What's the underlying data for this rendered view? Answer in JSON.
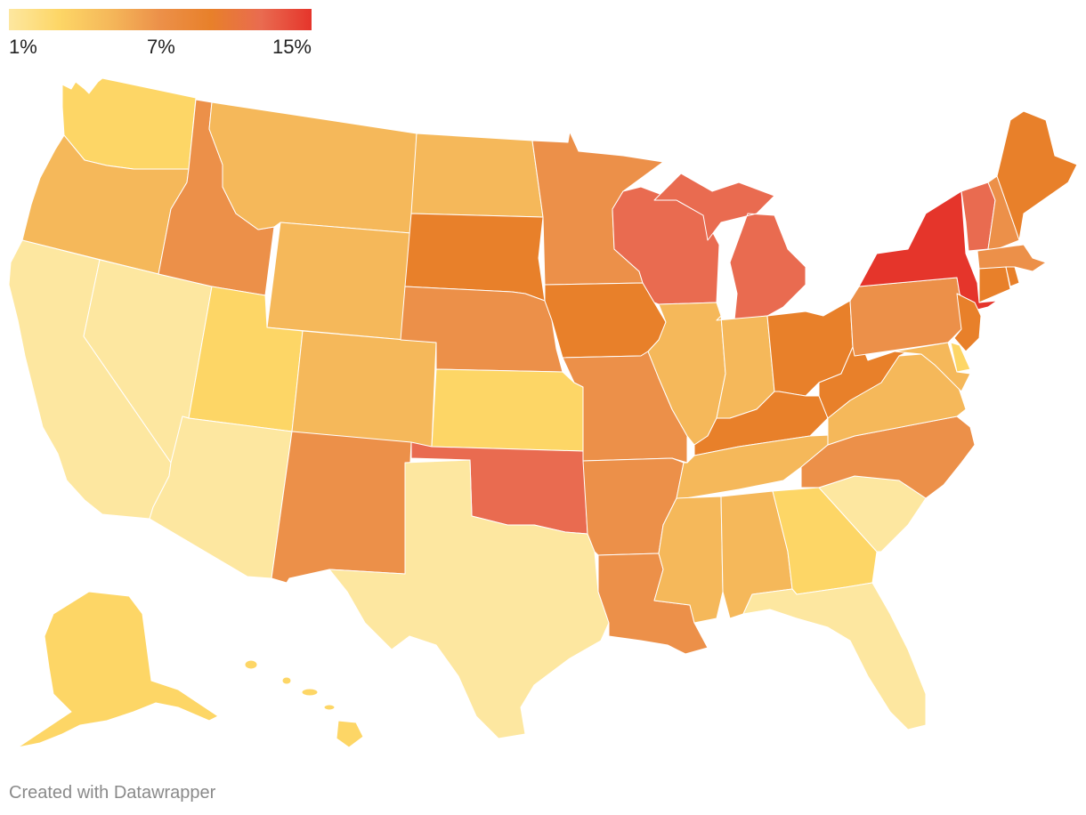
{
  "legend": {
    "colors": [
      "#fde7a0",
      "#fdd666",
      "#f5b85a",
      "#ec9049",
      "#e8802a",
      "#e96b50",
      "#e5352b"
    ],
    "labels": {
      "min": "1%",
      "mid": "7%",
      "max": "15%"
    }
  },
  "credit": "Created with Datawrapper",
  "colors": {
    "c1": "#fde7a0",
    "c2": "#fdd666",
    "c3": "#f5b85a",
    "c4": "#ec9049",
    "c5": "#e8802a",
    "c6": "#e96b50",
    "c7": "#e5352b"
  },
  "states": [
    {
      "name": "Washington",
      "color": "c2"
    },
    {
      "name": "Oregon",
      "color": "c3"
    },
    {
      "name": "California",
      "color": "c1"
    },
    {
      "name": "Nevada",
      "color": "c1"
    },
    {
      "name": "Idaho",
      "color": "c4"
    },
    {
      "name": "Montana",
      "color": "c3"
    },
    {
      "name": "Wyoming",
      "color": "c3"
    },
    {
      "name": "Utah",
      "color": "c2"
    },
    {
      "name": "Arizona",
      "color": "c1"
    },
    {
      "name": "Colorado",
      "color": "c3"
    },
    {
      "name": "New Mexico",
      "color": "c4"
    },
    {
      "name": "North Dakota",
      "color": "c3"
    },
    {
      "name": "South Dakota",
      "color": "c5"
    },
    {
      "name": "Nebraska",
      "color": "c4"
    },
    {
      "name": "Kansas",
      "color": "c2"
    },
    {
      "name": "Oklahoma",
      "color": "c6"
    },
    {
      "name": "Texas",
      "color": "c1"
    },
    {
      "name": "Minnesota",
      "color": "c4"
    },
    {
      "name": "Iowa",
      "color": "c5"
    },
    {
      "name": "Missouri",
      "color": "c4"
    },
    {
      "name": "Arkansas",
      "color": "c4"
    },
    {
      "name": "Louisiana",
      "color": "c4"
    },
    {
      "name": "Wisconsin",
      "color": "c6"
    },
    {
      "name": "Michigan",
      "color": "c6"
    },
    {
      "name": "Illinois",
      "color": "c3"
    },
    {
      "name": "Indiana",
      "color": "c3"
    },
    {
      "name": "Ohio",
      "color": "c5"
    },
    {
      "name": "Kentucky",
      "color": "c5"
    },
    {
      "name": "Tennessee",
      "color": "c3"
    },
    {
      "name": "Mississippi",
      "color": "c3"
    },
    {
      "name": "Alabama",
      "color": "c3"
    },
    {
      "name": "Georgia",
      "color": "c2"
    },
    {
      "name": "Florida",
      "color": "c1"
    },
    {
      "name": "South Carolina",
      "color": "c1"
    },
    {
      "name": "North Carolina",
      "color": "c4"
    },
    {
      "name": "Virginia",
      "color": "c3"
    },
    {
      "name": "West Virginia",
      "color": "c5"
    },
    {
      "name": "Pennsylvania",
      "color": "c4"
    },
    {
      "name": "New York",
      "color": "c7"
    },
    {
      "name": "Vermont",
      "color": "c6"
    },
    {
      "name": "New Hampshire",
      "color": "c4"
    },
    {
      "name": "Maine",
      "color": "c5"
    },
    {
      "name": "Massachusetts",
      "color": "c4"
    },
    {
      "name": "Connecticut",
      "color": "c5"
    },
    {
      "name": "Rhode Island",
      "color": "c5"
    },
    {
      "name": "New Jersey",
      "color": "c5"
    },
    {
      "name": "Delaware",
      "color": "c2"
    },
    {
      "name": "Maryland",
      "color": "c3"
    },
    {
      "name": "Alaska",
      "color": "c2"
    },
    {
      "name": "Hawaii",
      "color": "c2"
    }
  ]
}
